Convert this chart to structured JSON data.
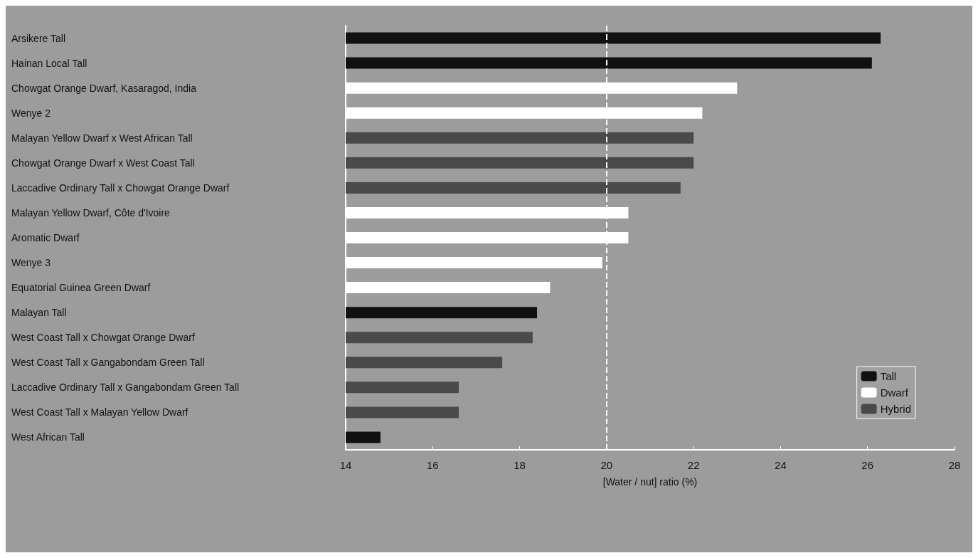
{
  "chart_data": {
    "type": "bar",
    "orientation": "horizontal",
    "xlabel": "[Water / nut] ratio (%)",
    "categories": [
      "Arsikere Tall",
      "Hainan Local Tall",
      "Chowgat Orange Dwarf, Kasaragod, India",
      "Wenye 2",
      "Malayan Yellow Dwarf x West African Tall",
      "Chowgat Orange Dwarf x West Coast Tall",
      "Laccadive Ordinary Tall x Chowgat Orange Dwarf",
      "Malayan Yellow Dwarf, Côte d'Ivoire",
      "Aromatic Dwarf",
      "Wenye 3",
      "Equatorial Guinea Green Dwarf",
      "Malayan Tall",
      "West Coast Tall x Chowgat Orange Dwarf",
      "West Coast Tall x Gangabondam Green Tall",
      "Laccadive Ordinary Tall x Gangabondam Green Tall",
      "West Coast Tall x Malayan Yellow Dwarf",
      "West African Tall"
    ],
    "series": [
      {
        "name": "Tall",
        "color": "#111111",
        "values": [
          26.3,
          26.1,
          null,
          null,
          null,
          null,
          null,
          null,
          null,
          null,
          null,
          18.4,
          null,
          null,
          null,
          null,
          14.8
        ]
      },
      {
        "name": "Dwarf",
        "color": "#ffffff",
        "values": [
          null,
          null,
          23.0,
          22.2,
          null,
          null,
          null,
          20.5,
          20.5,
          19.9,
          18.7,
          null,
          null,
          null,
          null,
          null,
          null
        ]
      },
      {
        "name": "Hybrid",
        "color": "#4a4a4a",
        "values": [
          null,
          null,
          null,
          null,
          22.0,
          22.0,
          21.7,
          null,
          null,
          null,
          null,
          null,
          18.3,
          17.6,
          16.6,
          16.6,
          null
        ]
      }
    ],
    "xlim": [
      14,
      28
    ],
    "xticks": [
      14,
      16,
      18,
      20,
      22,
      24,
      26,
      28
    ],
    "ref_lines": [
      {
        "axis": "x",
        "value": 20,
        "color": "#ffffff",
        "line_style": "dashed"
      }
    ],
    "grid": false,
    "legend": "bottom right"
  }
}
